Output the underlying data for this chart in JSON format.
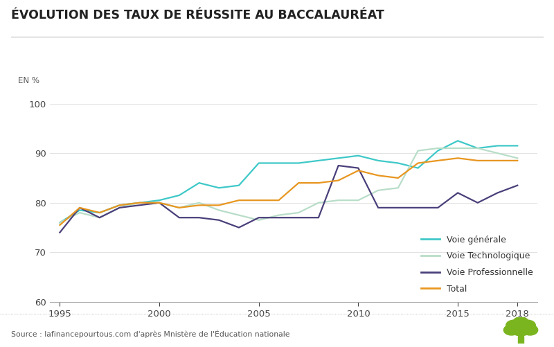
{
  "title": "ÉVOLUTION DES TAUX DE RÉUSSITE AU BACCALAURÉAT",
  "ylabel": "EN %",
  "source": "Source : lafinancepourtous.com d'après Mnistère de l'Éducation nationale",
  "ylim": [
    60,
    102
  ],
  "yticks": [
    60,
    70,
    80,
    90,
    100
  ],
  "xlim": [
    1994.5,
    2019.0
  ],
  "xticks": [
    1995,
    2000,
    2005,
    2010,
    2015,
    2018
  ],
  "years": [
    1995,
    1996,
    1997,
    1998,
    1999,
    2000,
    2001,
    2002,
    2003,
    2004,
    2005,
    2006,
    2007,
    2008,
    2009,
    2010,
    2011,
    2012,
    2013,
    2014,
    2015,
    2016,
    2017,
    2018
  ],
  "voie_generale": [
    76.0,
    78.5,
    78.0,
    79.5,
    80.0,
    80.5,
    81.5,
    84.0,
    83.0,
    83.5,
    88.0,
    88.0,
    88.0,
    88.5,
    89.0,
    89.5,
    88.5,
    88.0,
    87.0,
    90.5,
    92.5,
    91.0,
    91.5,
    91.5
  ],
  "voie_techno": [
    76.0,
    78.0,
    77.0,
    79.0,
    80.0,
    80.0,
    79.0,
    80.0,
    78.5,
    77.5,
    76.5,
    77.5,
    78.0,
    80.0,
    80.5,
    80.5,
    82.5,
    83.0,
    90.5,
    91.0,
    91.0,
    91.0,
    90.0,
    89.0
  ],
  "voie_pro": [
    74.0,
    79.0,
    77.0,
    79.0,
    79.5,
    80.0,
    77.0,
    77.0,
    76.5,
    75.0,
    77.0,
    77.0,
    77.0,
    77.0,
    87.5,
    87.0,
    79.0,
    79.0,
    79.0,
    79.0,
    82.0,
    80.0,
    82.0,
    83.5
  ],
  "total": [
    75.5,
    79.0,
    78.0,
    79.5,
    80.0,
    80.0,
    79.0,
    79.5,
    79.5,
    80.5,
    80.5,
    80.5,
    84.0,
    84.0,
    84.5,
    86.5,
    85.5,
    85.0,
    88.0,
    88.5,
    89.0,
    88.5,
    88.5,
    88.5
  ],
  "color_generale": "#3ec8c8",
  "color_techno": "#b8ddc8",
  "color_pro": "#4a3f7a",
  "color_total": "#e89620",
  "bg_color": "#ffffff"
}
